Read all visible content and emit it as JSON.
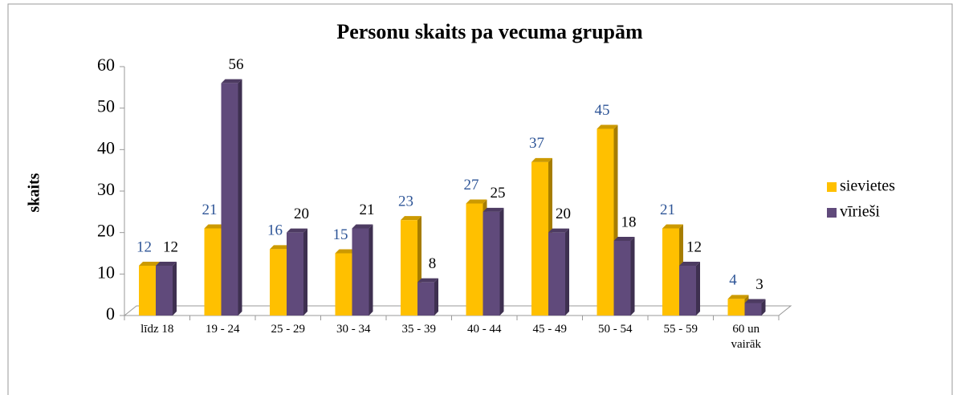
{
  "chart_data": {
    "type": "bar3d",
    "title": "Personu skaits pa vecuma grupām",
    "y_label": "skaits",
    "categories": [
      "līdz 18",
      "19 - 24",
      "25 - 29",
      "30 - 34",
      "35 - 39",
      "40 - 44",
      "45 - 49",
      "50 - 54",
      "55 - 59",
      "60 un vairāk"
    ],
    "series": [
      {
        "name": "sievietes",
        "color": "#ffc000",
        "label_color": "#2e5597",
        "values": [
          12,
          21,
          16,
          15,
          23,
          27,
          37,
          45,
          21,
          4
        ]
      },
      {
        "name": "vīrieši",
        "color": "#604a7b",
        "label_color": "#000000",
        "values": [
          12,
          56,
          20,
          21,
          8,
          25,
          20,
          18,
          12,
          3
        ]
      }
    ],
    "ylim": [
      0,
      60
    ],
    "yticks": [
      0,
      10,
      20,
      30,
      40,
      50,
      60
    ],
    "legend": "right"
  }
}
